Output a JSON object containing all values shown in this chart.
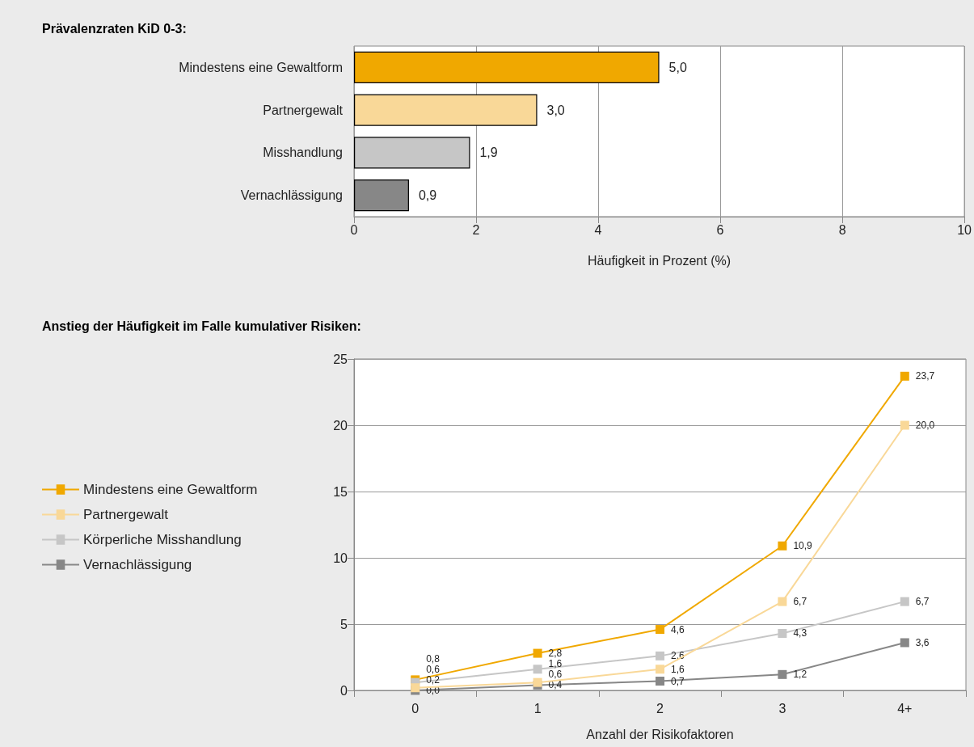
{
  "chart_data": [
    {
      "type": "bar",
      "title": "Prävalenzraten KiD 0-3:",
      "orientation": "horizontal",
      "categories": [
        "Mindestens eine Gewaltform",
        "Partnergewalt",
        "Misshandlung",
        "Vernachlässigung"
      ],
      "values": [
        5.0,
        3.0,
        1.9,
        0.9
      ],
      "colors": [
        "#f0a800",
        "#f9d898",
        "#c6c6c6",
        "#878787"
      ],
      "value_labels": [
        "5,0",
        "3,0",
        "1,9",
        "0,9"
      ],
      "xlabel": "Häufigkeit in Prozent (%)",
      "xlim": [
        0,
        10
      ],
      "xticks": [
        0,
        2,
        4,
        6,
        8,
        10
      ],
      "grid": "x"
    },
    {
      "type": "line",
      "title": "Anstieg der Häufigkeit im Falle kumulativer Risiken:",
      "categories": [
        "0",
        "1",
        "2",
        "3",
        "4+"
      ],
      "xlabel": "Anzahl der Risikofaktoren",
      "ylim": [
        0,
        25
      ],
      "yticks": [
        0,
        5,
        10,
        15,
        20,
        25
      ],
      "grid": "y",
      "legend": "left",
      "marker": "square",
      "series": [
        {
          "name": "Mindestens eine Gewaltform",
          "color": "#f0a800",
          "values": [
            0.8,
            2.8,
            4.6,
            10.9,
            23.7
          ],
          "value_labels": [
            "0,8",
            "2,8",
            "4,6",
            "10,9",
            "23,7"
          ]
        },
        {
          "name": "Partnergewalt",
          "color": "#f9d898",
          "values": [
            0.2,
            0.6,
            1.6,
            6.7,
            20.0
          ],
          "value_labels": [
            "0,2",
            "0,6",
            "1,6",
            "6,7",
            "20,0"
          ]
        },
        {
          "name": "Körperliche Misshandlung",
          "color": "#c6c6c6",
          "values": [
            0.6,
            1.6,
            2.6,
            4.3,
            6.7
          ],
          "value_labels": [
            "0,6",
            "1,6",
            "2,6",
            "4,3",
            "6,7"
          ]
        },
        {
          "name": "Vernachlässigung",
          "color": "#878787",
          "values": [
            0.0,
            0.4,
            0.7,
            1.2,
            3.6
          ],
          "value_labels": [
            "0,0",
            "0,4",
            "0,7",
            "1,2",
            "3,6"
          ]
        }
      ]
    }
  ]
}
